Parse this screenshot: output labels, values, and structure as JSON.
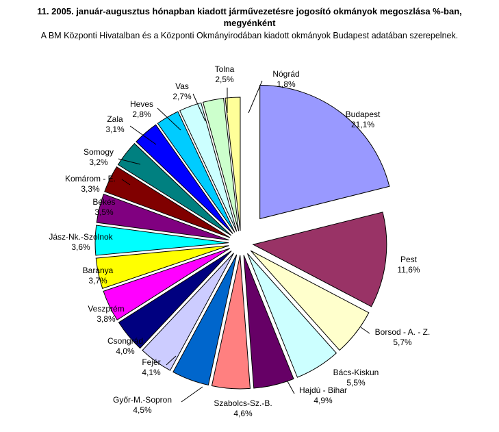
{
  "title_line1": "11. 2005. január-augusztus hónapban kiadott járművezetésre jogosító okmányok megoszlása %-ban,",
  "title_line2": "megyénként",
  "subtitle": "A BM Központi Hivatalban és a Központi Okmányirodában kiadott okmányok Budapest adatában szerepelnek.",
  "chart_data": {
    "type": "pie",
    "value_suffix": "%",
    "slices": [
      {
        "name": "Budapest",
        "value": 21.1,
        "label": "21,1%",
        "color": "#9999FF"
      },
      {
        "name": "Pest",
        "value": 11.6,
        "label": "11,6%",
        "color": "#993366"
      },
      {
        "name": "Borsod - A. - Z.",
        "value": 5.7,
        "label": "5,7%",
        "color": "#FFFFCC"
      },
      {
        "name": "Bács-Kiskun",
        "value": 5.5,
        "label": "5,5%",
        "color": "#CCFFFF"
      },
      {
        "name": "Hajdú - Bihar",
        "value": 4.9,
        "label": "4,9%",
        "color": "#660066"
      },
      {
        "name": "Szabolcs-Sz.-B.",
        "value": 4.6,
        "label": "4,6%",
        "color": "#FF8080"
      },
      {
        "name": "Győr-M.-Sopron",
        "value": 4.5,
        "label": "4,5%",
        "color": "#0066CC"
      },
      {
        "name": "Fejér",
        "value": 4.1,
        "label": "4,1%",
        "color": "#CCCCFF"
      },
      {
        "name": "Csongrád",
        "value": 4.0,
        "label": "4,0%",
        "color": "#000080"
      },
      {
        "name": "Veszprém",
        "value": 3.8,
        "label": "3,8%",
        "color": "#FF00FF"
      },
      {
        "name": "Baranya",
        "value": 3.7,
        "label": "3,7%",
        "color": "#FFFF00"
      },
      {
        "name": "Jász-Nk.-Szolnok",
        "value": 3.6,
        "label": "3,6%",
        "color": "#00FFFF"
      },
      {
        "name": "Békés",
        "value": 3.5,
        "label": "3,5%",
        "color": "#800080"
      },
      {
        "name": "Komárom - E.",
        "value": 3.3,
        "label": "3,3%",
        "color": "#800000"
      },
      {
        "name": "Somogy",
        "value": 3.2,
        "label": "3,2%",
        "color": "#008080"
      },
      {
        "name": "Zala",
        "value": 3.1,
        "label": "3,1%",
        "color": "#0000FF"
      },
      {
        "name": "Heves",
        "value": 2.8,
        "label": "2,8%",
        "color": "#00CCFF"
      },
      {
        "name": "Vas",
        "value": 2.7,
        "label": "2,7%",
        "color": "#CCFFFF"
      },
      {
        "name": "Tolna",
        "value": 2.5,
        "label": "2,5%",
        "color": "#CCFFCC"
      },
      {
        "name": "Nógrád",
        "value": 1.8,
        "label": "1,8%",
        "color": "#FFFF99"
      }
    ]
  }
}
